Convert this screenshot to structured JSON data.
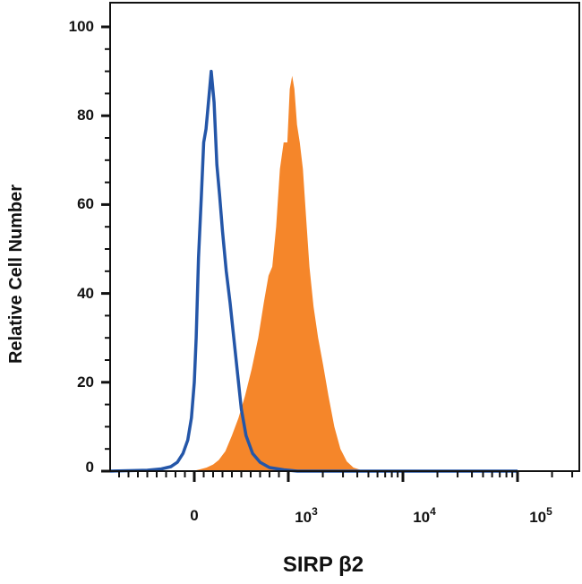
{
  "chart_data": {
    "type": "area",
    "ylabel": "Relative Cell Number",
    "xlabel": "SIRP β2",
    "ylim": [
      0,
      100
    ],
    "y_ticks": [
      "0",
      "20",
      "40",
      "60",
      "80",
      "100"
    ],
    "x_scale": "biexponential",
    "x_ticks": [
      {
        "base": "0",
        "exp": ""
      },
      {
        "base": "10",
        "exp": "3"
      },
      {
        "base": "10",
        "exp": "4"
      },
      {
        "base": "10",
        "exp": "5"
      }
    ],
    "colors": {
      "filled": "#f5862a",
      "outline": "#2456a8",
      "axis": "#111111"
    },
    "series": [
      {
        "style": "filled",
        "x": [
          -2000,
          -20,
          60,
          130,
          200,
          260,
          330,
          400,
          470,
          540,
          610,
          680,
          740,
          790,
          830,
          870,
          910,
          950,
          990,
          1030,
          1080,
          1130,
          1190,
          1260,
          1340,
          1430,
          1530,
          1660,
          1820,
          2010,
          2240,
          2520,
          2850,
          3240,
          3700,
          4250,
          4900,
          5700,
          6700,
          8000,
          100000
        ],
        "y": [
          0,
          0,
          0.4,
          0.8,
          1.5,
          2.5,
          4.5,
          8,
          12,
          17,
          23,
          30,
          38,
          44,
          46,
          55,
          68,
          74,
          74,
          86,
          89,
          86,
          78,
          74,
          68,
          57,
          46,
          37,
          30,
          24,
          17,
          10,
          5,
          2.2,
          0.8,
          0.3,
          0,
          0,
          0,
          0,
          0
        ]
      },
      {
        "style": "outline",
        "x": [
          -2000,
          -900,
          -500,
          -350,
          -250,
          -180,
          -120,
          -70,
          -30,
          0,
          20,
          45,
          75,
          100,
          125,
          150,
          180,
          210,
          240,
          270,
          300,
          340,
          380,
          420,
          460,
          500,
          550,
          620,
          700,
          800,
          950,
          1200,
          1600,
          100000
        ],
        "y": [
          0,
          0,
          0.2,
          0.5,
          1,
          2,
          4,
          7,
          12,
          20,
          30,
          48,
          62,
          74,
          77,
          83,
          90,
          83,
          69,
          62,
          54,
          45,
          38,
          30,
          22,
          14,
          8,
          4,
          2,
          0.8,
          0.3,
          0,
          0,
          0
        ]
      }
    ]
  }
}
